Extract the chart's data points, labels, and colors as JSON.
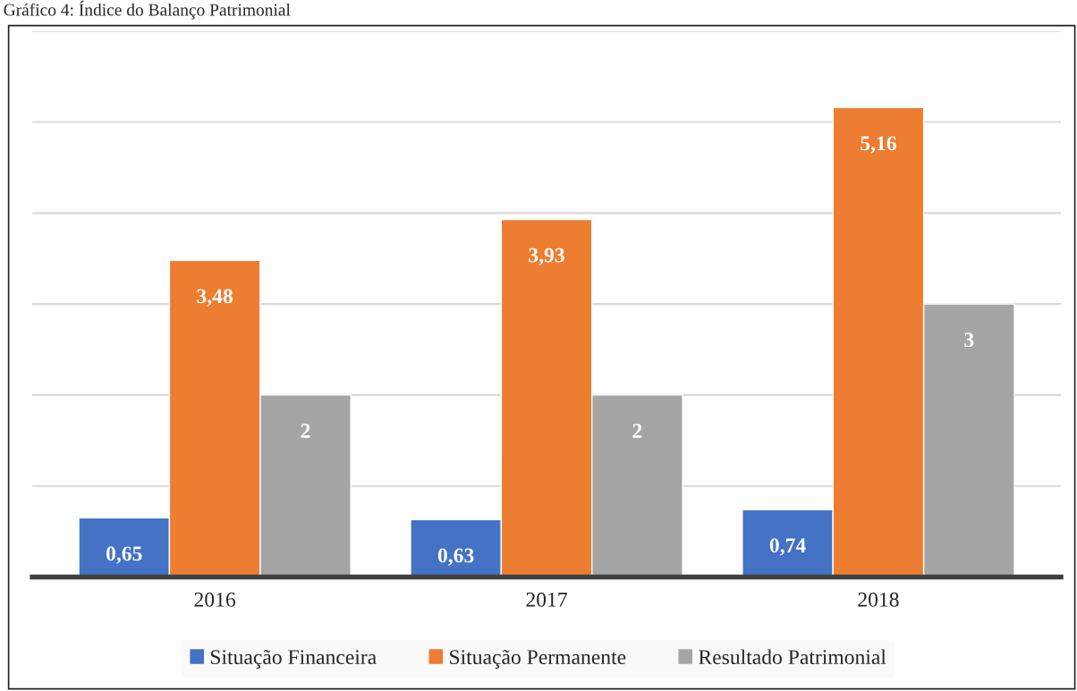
{
  "chart_data": {
    "type": "bar",
    "title": "Gráfico 4: Índice do Balanço Patrimonial",
    "categories": [
      "2016",
      "2017",
      "2018"
    ],
    "series": [
      {
        "name": "Situação Financeira",
        "color": "#4472c4",
        "values": [
          0.65,
          0.63,
          0.74
        ],
        "value_labels": [
          "0,65",
          "0,63",
          "0,74"
        ]
      },
      {
        "name": "Situação Permanente",
        "color": "#ed7d31",
        "values": [
          3.48,
          3.93,
          5.16
        ],
        "value_labels": [
          "3,48",
          "3,93",
          "5,16"
        ]
      },
      {
        "name": "Resultado Patrimonial",
        "color": "#a5a5a5",
        "values": [
          2,
          2,
          3
        ],
        "value_labels": [
          "2",
          "2",
          "3"
        ]
      }
    ],
    "ylim": [
      0,
      6
    ],
    "yticks": [
      {
        "value": 0,
        "label": null
      },
      {
        "value": 1,
        "label": null
      },
      {
        "value": 2,
        "label": null
      },
      {
        "value": 3,
        "label": null
      },
      {
        "value": 4,
        "label": null
      },
      {
        "value": 5,
        "label": null
      },
      {
        "value": 6,
        "label": null
      }
    ],
    "tick_labels": "x",
    "grid": "y",
    "legend": "bottom"
  }
}
